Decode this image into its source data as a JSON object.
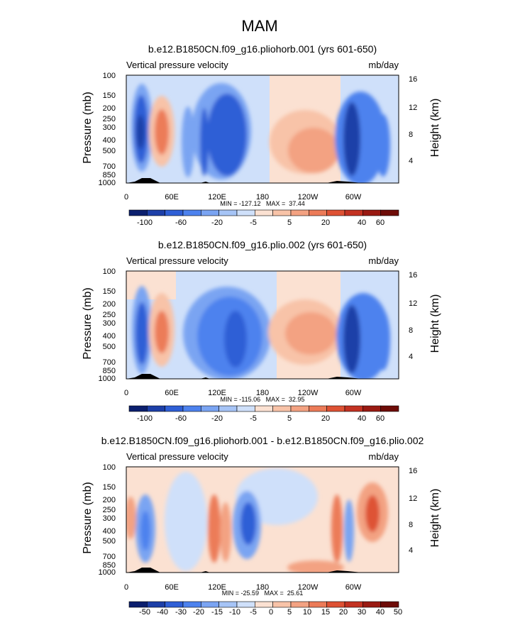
{
  "page_title": "MAM",
  "chart_data": [
    {
      "type": "heatmap",
      "title": "b.e12.B1850CN.f09_g16.pliohorb.001 (yrs 601-650)",
      "left_label": "Vertical pressure velocity",
      "right_label": "mb/day",
      "ylabel": "Pressure (mb)",
      "y2label": "Height (km)",
      "y_ticks": [
        "100",
        "150",
        "200",
        "250",
        "300",
        "400",
        "500",
        "700",
        "850",
        "1000"
      ],
      "y2_ticks": [
        "16",
        "12",
        "8",
        "4"
      ],
      "x_ticks": [
        "0",
        "60E",
        "120E",
        "180",
        "120W",
        "60W"
      ],
      "stats": "MIN = -127.12   MAX =  37.44",
      "colorbar_labels": [
        "-100",
        "-60",
        "-20",
        "-5",
        "5",
        "20",
        "40",
        "60"
      ]
    },
    {
      "type": "heatmap",
      "title": "b.e12.B1850CN.f09_g16.plio.002 (yrs 601-650)",
      "left_label": "Vertical pressure velocity",
      "right_label": "mb/day",
      "ylabel": "Pressure (mb)",
      "y2label": "Height (km)",
      "y_ticks": [
        "100",
        "150",
        "200",
        "250",
        "300",
        "400",
        "500",
        "700",
        "850",
        "1000"
      ],
      "y2_ticks": [
        "16",
        "12",
        "8",
        "4"
      ],
      "x_ticks": [
        "0",
        "60E",
        "120E",
        "180",
        "120W",
        "60W"
      ],
      "stats": "MIN = -115.06   MAX =  32.95",
      "colorbar_labels": [
        "-100",
        "-60",
        "-20",
        "-5",
        "5",
        "20",
        "40",
        "60"
      ]
    },
    {
      "type": "heatmap",
      "title": "b.e12.B1850CN.f09_g16.pliohorb.001 - b.e12.B1850CN.f09_g16.plio.002",
      "left_label": "Vertical pressure velocity",
      "right_label": "mb/day",
      "ylabel": "Pressure (mb)",
      "y2label": "Height (km)",
      "y_ticks": [
        "100",
        "150",
        "200",
        "250",
        "300",
        "400",
        "500",
        "700",
        "850",
        "1000"
      ],
      "y2_ticks": [
        "16",
        "12",
        "8",
        "4"
      ],
      "x_ticks": [
        "0",
        "60E",
        "120E",
        "180",
        "120W",
        "60W"
      ],
      "stats": "MIN = -25.59   MAX =  25.61",
      "colorbar_labels": [
        "-50",
        "-40",
        "-30",
        "-20",
        "-15",
        "-10",
        "-5",
        "0",
        "5",
        "10",
        "15",
        "20",
        "30",
        "40",
        "50"
      ]
    }
  ],
  "colorbar_colors": [
    "#0b1f6e",
    "#1d3fa8",
    "#2f5fd6",
    "#4d82ee",
    "#7aa4f2",
    "#a6c4f6",
    "#cfe0fa",
    "#fbe1d2",
    "#f8c3a8",
    "#f3a282",
    "#ec7b58",
    "#de5234",
    "#c33222",
    "#9a1a12",
    "#6e0c08"
  ]
}
